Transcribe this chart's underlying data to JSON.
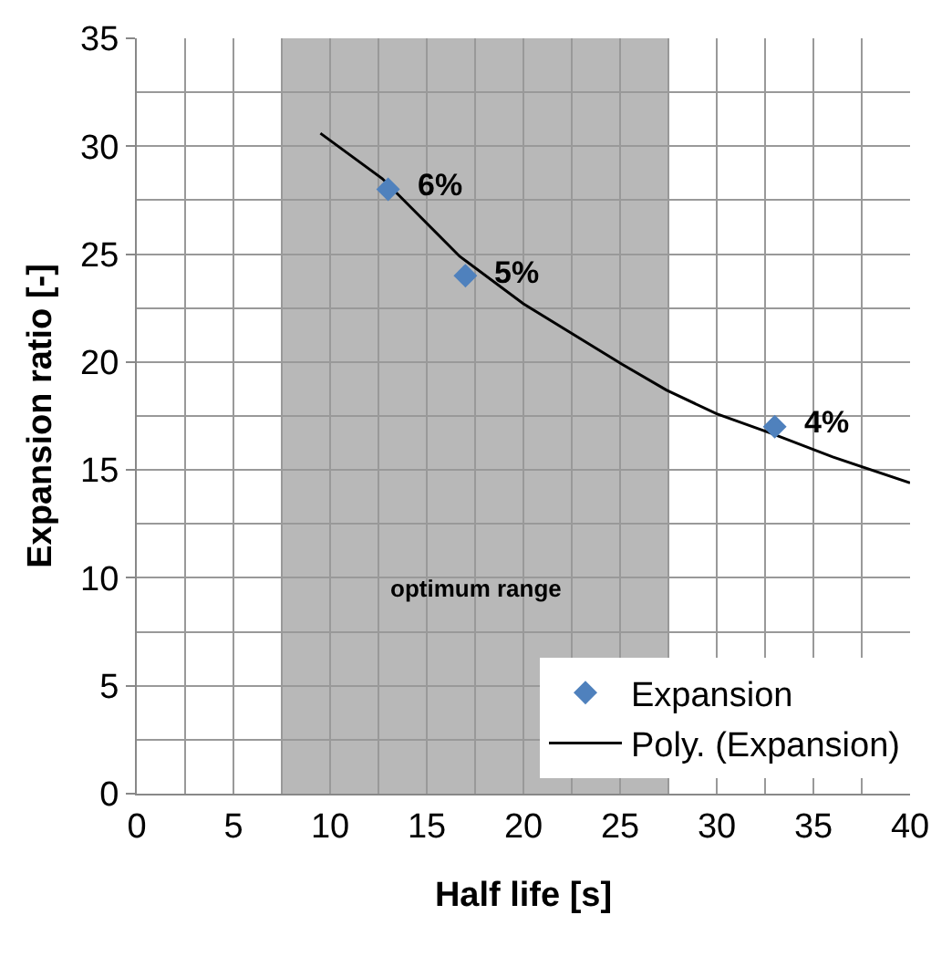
{
  "chart_data": {
    "type": "scatter",
    "xlabel": "Half life [s]",
    "ylabel": "Expansion ratio [-]",
    "series": [
      {
        "name": "Expansion",
        "color": "#4f81bd",
        "marker": "diamond",
        "x": [
          13,
          17,
          33
        ],
        "values": [
          28,
          24,
          17
        ]
      },
      {
        "name": "Poly. (Expansion)",
        "type": "line",
        "color": "#000000",
        "marker": "none",
        "line_style": "solid",
        "x": [
          9.5,
          12.7,
          16.7,
          20,
          25.1,
          27.4,
          30,
          32.8,
          36,
          40
        ],
        "values": [
          30.6,
          28.5,
          24.9,
          22.7,
          19.9,
          18.7,
          17.6,
          16.7,
          15.6,
          14.4
        ]
      }
    ],
    "annotations": [
      {
        "text": "6%",
        "x": 13,
        "y": 28
      },
      {
        "text": "5%",
        "x": 17,
        "y": 24
      },
      {
        "text": "4%",
        "x": 33,
        "y": 17
      }
    ],
    "bands": [
      {
        "axis": "x",
        "from": 7.5,
        "to": 27.5,
        "label": "optimum range",
        "color": "#a6a6a6"
      }
    ],
    "xlim": [
      0,
      40
    ],
    "xticks": [
      0,
      5,
      10,
      15,
      20,
      25,
      30,
      35,
      40
    ],
    "ylim": [
      0,
      35
    ],
    "yticks": [
      0,
      5,
      10,
      15,
      20,
      25,
      30,
      35
    ],
    "grid": true,
    "legend": "bottom right"
  }
}
